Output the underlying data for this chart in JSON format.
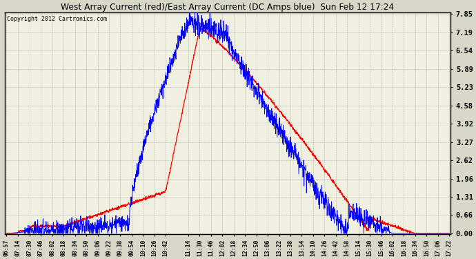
{
  "title": "West Array Current (red)/East Array Current (DC Amps blue)  Sun Feb 12 17:24",
  "copyright": "Copyright 2012 Cartronics.com",
  "yticks": [
    0.0,
    0.66,
    1.31,
    1.96,
    2.62,
    3.27,
    3.92,
    4.58,
    5.23,
    5.89,
    6.54,
    7.19,
    7.85
  ],
  "ymax": 7.85,
  "ymin": 0.0,
  "bg_color": "#d8d8c8",
  "grid_color": "#aaaaaa",
  "plot_bg": "#f0f0e0",
  "x_labels": [
    "06:57",
    "07:14",
    "07:30",
    "07:46",
    "08:02",
    "08:18",
    "08:34",
    "08:50",
    "09:06",
    "09:22",
    "09:38",
    "09:54",
    "10:10",
    "10:26",
    "10:42",
    "11:14",
    "11:30",
    "11:46",
    "12:02",
    "12:18",
    "12:34",
    "12:50",
    "13:06",
    "13:22",
    "13:38",
    "13:54",
    "14:10",
    "14:26",
    "14:42",
    "14:58",
    "15:14",
    "15:30",
    "15:46",
    "16:02",
    "16:18",
    "16:34",
    "16:50",
    "17:06",
    "17:22"
  ]
}
